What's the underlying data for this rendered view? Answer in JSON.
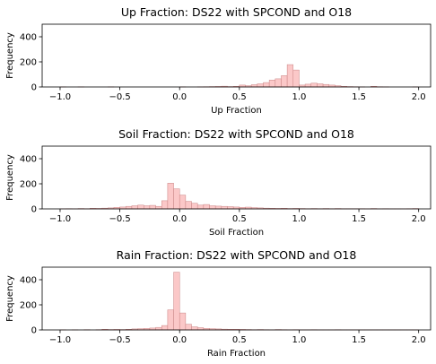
{
  "chart_data": [
    {
      "type": "bar",
      "title": "Up Fraction: DS22 with SPCOND and O18",
      "xlabel": "Up Fraction",
      "ylabel": "Frequency",
      "xlim": [
        -1.15,
        2.1
      ],
      "ylim": [
        0,
        500
      ],
      "xticks": [
        "−1.0",
        "−0.5",
        "0.0",
        "0.5",
        "1.0",
        "1.5",
        "2.0"
      ],
      "yticks": [
        "0",
        "200",
        "400"
      ],
      "bin_start": -1.0,
      "bin_width": 0.05,
      "values": [
        1,
        0,
        0,
        1,
        0,
        0,
        0,
        0,
        1,
        0,
        0,
        0,
        0,
        0,
        0,
        0,
        0,
        0,
        0,
        0,
        1,
        0,
        0,
        1,
        2,
        3,
        4,
        6,
        3,
        5,
        15,
        10,
        18,
        25,
        35,
        55,
        65,
        90,
        178,
        135,
        15,
        22,
        30,
        25,
        20,
        15,
        10,
        5,
        3,
        2,
        1,
        0,
        5,
        2,
        1,
        0,
        0,
        0,
        0,
        1
      ]
    },
    {
      "type": "bar",
      "title": "Soil Fraction: DS22 with SPCOND and O18",
      "xlabel": "Soil Fraction",
      "ylabel": "Frequency",
      "xlim": [
        -1.15,
        2.1
      ],
      "ylim": [
        0,
        500
      ],
      "xticks": [
        "−1.0",
        "−0.5",
        "0.0",
        "0.5",
        "1.0",
        "1.5",
        "2.0"
      ],
      "yticks": [
        "0",
        "200",
        "400"
      ],
      "bin_start": -1.0,
      "bin_width": 0.05,
      "values": [
        1,
        2,
        1,
        3,
        2,
        5,
        4,
        6,
        8,
        12,
        15,
        20,
        25,
        30,
        25,
        28,
        20,
        65,
        205,
        160,
        110,
        60,
        45,
        30,
        35,
        25,
        22,
        20,
        18,
        15,
        12,
        14,
        10,
        8,
        6,
        5,
        4,
        5,
        3,
        4,
        3,
        2,
        3,
        2,
        3,
        2,
        3,
        2,
        2,
        2,
        2,
        1,
        3,
        1,
        2,
        1,
        1,
        1,
        2,
        3
      ]
    },
    {
      "type": "bar",
      "title": "Rain Fraction: DS22 with SPCOND and O18",
      "xlabel": "Rain Fraction",
      "ylabel": "Frequency",
      "xlim": [
        -1.15,
        2.1
      ],
      "ylim": [
        0,
        500
      ],
      "xticks": [
        "−1.0",
        "−0.5",
        "0.0",
        "0.5",
        "1.0",
        "1.5",
        "2.0"
      ],
      "yticks": [
        "0",
        "200",
        "400"
      ],
      "bin_start": -1.0,
      "bin_width": 0.05,
      "values": [
        1,
        0,
        1,
        0,
        2,
        0,
        2,
        5,
        3,
        4,
        3,
        5,
        8,
        10,
        12,
        15,
        20,
        35,
        160,
        460,
        135,
        45,
        25,
        18,
        12,
        10,
        8,
        6,
        5,
        5,
        4,
        3,
        2,
        3,
        2,
        1,
        3,
        2,
        1,
        2,
        1,
        1,
        2,
        1,
        1,
        1,
        2,
        1,
        1,
        1,
        1,
        1,
        1,
        1,
        1,
        1,
        1,
        1,
        1,
        1
      ]
    }
  ]
}
